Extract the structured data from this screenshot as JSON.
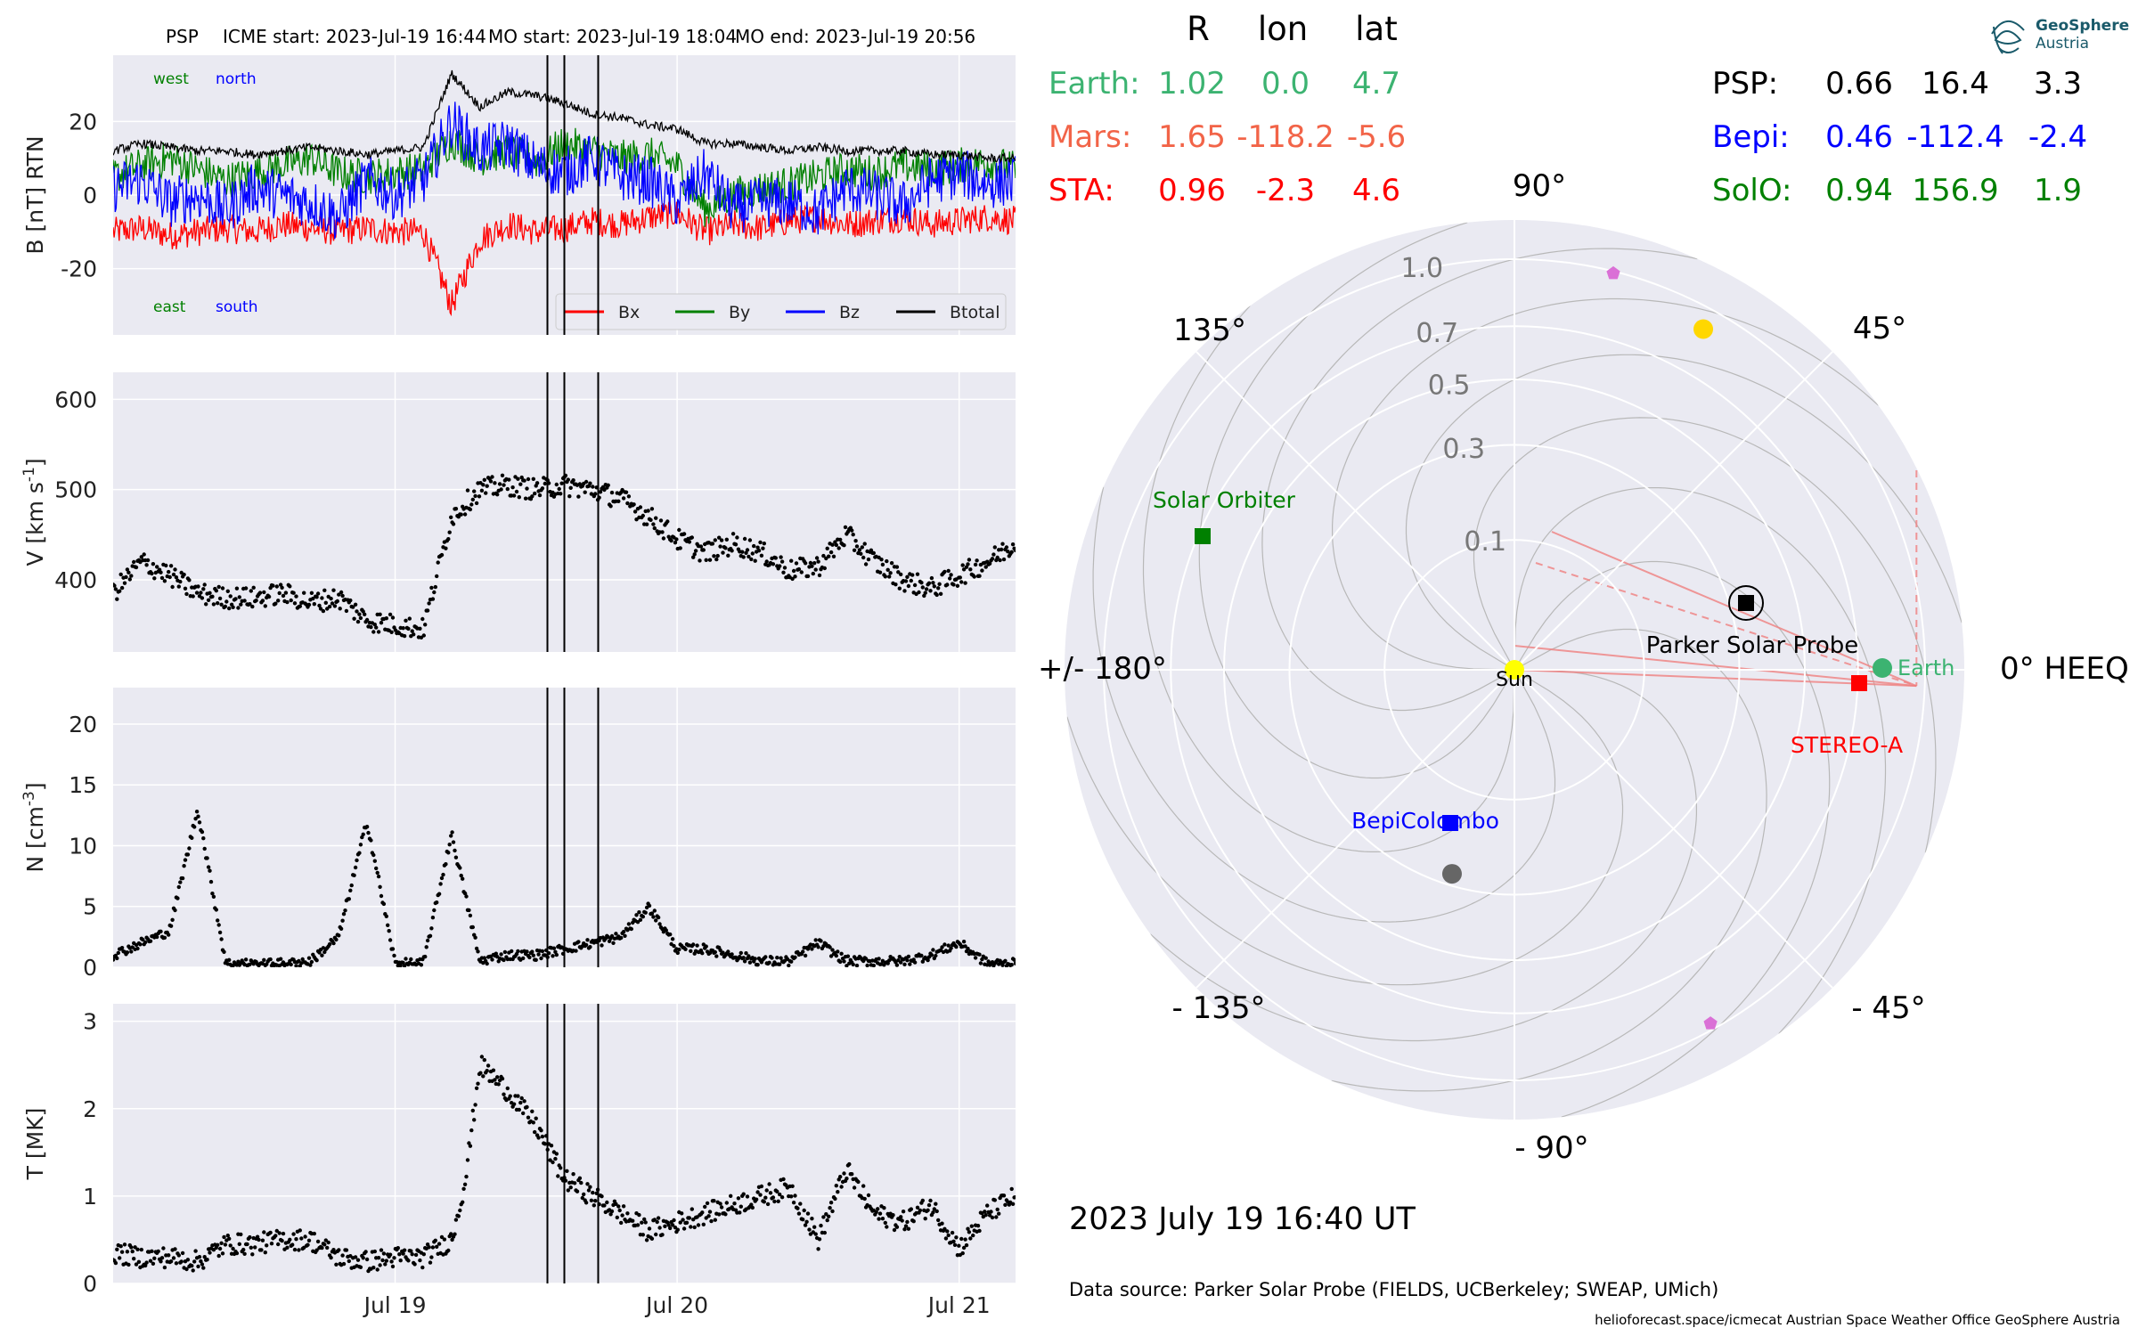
{
  "header": {
    "spacecraft": "PSP",
    "icme_start": "ICME start: 2023-Jul-19 16:44",
    "mo_start": "MO start: 2023-Jul-19 18:04",
    "mo_end": "MO end: 2023-Jul-19 20:56"
  },
  "logo": {
    "line1": "GeoSphere",
    "line2": "Austria"
  },
  "positions_table": {
    "columns": [
      "R",
      "lon",
      "lat"
    ],
    "rows_left": [
      {
        "name": "Earth:",
        "R": "1.02",
        "lon": "0.0",
        "lat": "4.7",
        "color": "#3cb371"
      },
      {
        "name": "Mars:",
        "R": "1.65",
        "lon": "-118.2",
        "lat": "-5.6",
        "color": "#f26448"
      },
      {
        "name": "STA:",
        "R": "0.96",
        "lon": "-2.3",
        "lat": "4.6",
        "color": "#ff0000"
      }
    ],
    "rows_right": [
      {
        "name": "PSP:",
        "R": "0.66",
        "lon": "16.4",
        "lat": "3.3",
        "color": "#000000"
      },
      {
        "name": "Bepi:",
        "R": "0.46",
        "lon": "-112.4",
        "lat": "-2.4",
        "color": "#0000ff"
      },
      {
        "name": "SolO:",
        "R": "0.94",
        "lon": "156.9",
        "lat": "1.9",
        "color": "#008000"
      }
    ]
  },
  "polar_plot": {
    "angle_labels": {
      "a0": "0° HEEQ",
      "a45": "45°",
      "a90": "90°",
      "a135": "135°",
      "a180": "+/- 180°",
      "am135": "- 135°",
      "am90": "- 90°",
      "am45": "- 45°"
    },
    "radial_ticks": [
      0.1,
      0.3,
      0.5,
      0.7,
      1.0
    ],
    "radial_labels": [
      "0.1",
      "0.3",
      "0.5",
      "0.7",
      "1.0"
    ],
    "bodies": [
      {
        "label": "Sun",
        "r": 0.0,
        "lon": 0.0,
        "marker": "circle",
        "color": "#ffff00"
      },
      {
        "label": "Earth",
        "r": 1.02,
        "lon": 0.0,
        "marker": "circle",
        "color": "#3cb371"
      },
      {
        "label": "STEREO-A",
        "r": 0.96,
        "lon": -2.3,
        "marker": "square",
        "color": "#ff0000"
      },
      {
        "label": "Parker Solar Probe",
        "r": 0.66,
        "lon": 16.4,
        "marker": "square",
        "color": "#000000"
      },
      {
        "label": "Solar Orbiter",
        "r": 0.94,
        "lon": 156.9,
        "marker": "square",
        "color": "#008000"
      },
      {
        "label": "BepiColombo",
        "r": 0.46,
        "lon": -112.4,
        "marker": "square",
        "color": "#0000ff"
      }
    ],
    "extra_markers": [
      {
        "r": 0.27,
        "lon": -107,
        "marker": "circle",
        "color": "#666666"
      },
      {
        "r": 0.99,
        "lon": 76,
        "marker": "pentagon",
        "color": "#da70d6"
      },
      {
        "r": 0.97,
        "lon": -61,
        "marker": "pentagon",
        "color": "#da70d6"
      },
      {
        "r": 0.9,
        "lon": 61,
        "marker": "square",
        "color": "#ffd700"
      }
    ],
    "mars": {
      "r": 1.65,
      "lon": -118.2,
      "color": "#f26448"
    },
    "date_text": "2023 July 19  16:40 UT"
  },
  "footer": {
    "data_source": "Data source: Parker Solar Probe (FIELDS, UCBerkeley; SWEAP, UMich)",
    "credits": "helioforecast.space/icmecat   Austrian Space Weather Office   GeoSphere Austria"
  },
  "chart_data": [
    {
      "type": "line",
      "ylabel": "B [nT] RTN",
      "ylim": [
        -38,
        38
      ],
      "yticks": [
        -20,
        0,
        20
      ],
      "series": [
        {
          "name": "Bx",
          "color": "#ff0000"
        },
        {
          "name": "By",
          "color": "#008000"
        },
        {
          "name": "Bz",
          "color": "#0000ff"
        },
        {
          "name": "Btotal",
          "color": "#000000"
        }
      ],
      "annotations": {
        "west": "west",
        "north": "north",
        "east": "east",
        "south": "south"
      },
      "legend_position": "lower-right",
      "x": [
        0,
        0.1,
        0.2,
        0.3,
        0.4,
        0.5,
        0.6,
        0.7,
        0.8,
        0.9,
        1.0,
        1.1,
        1.2,
        1.3,
        1.4,
        1.5,
        1.6,
        1.7,
        1.8,
        1.9,
        2.0,
        2.1,
        2.2,
        2.3,
        2.4,
        2.5,
        2.6,
        2.7,
        2.8,
        2.9,
        3.0,
        3.1,
        3.2
      ],
      "btotal": [
        12,
        14,
        13,
        12,
        12,
        11,
        12,
        13,
        12,
        11,
        12,
        13,
        33,
        24,
        28,
        27,
        25,
        22,
        21,
        19,
        18,
        14,
        14,
        13,
        12,
        13,
        12,
        12,
        12,
        11,
        11,
        10,
        10
      ],
      "bx": [
        -10,
        -9,
        -11,
        -10,
        -9,
        -10,
        -8,
        -9,
        -10,
        -9,
        -10,
        -10,
        -30,
        -12,
        -8,
        -10,
        -9,
        -7,
        -8,
        -6,
        -5,
        -10,
        -8,
        -9,
        -7,
        -6,
        -8,
        -7,
        -6,
        -8,
        -7,
        -6,
        -7
      ],
      "by": [
        5,
        8,
        10,
        7,
        4,
        6,
        8,
        10,
        6,
        5,
        6,
        7,
        15,
        10,
        12,
        9,
        14,
        12,
        10,
        11,
        8,
        -4,
        0,
        2,
        3,
        5,
        7,
        6,
        8,
        7,
        8,
        9,
        7
      ],
      "bz": [
        2,
        4,
        -2,
        0,
        -4,
        2,
        0,
        -2,
        -6,
        4,
        0,
        4,
        20,
        12,
        14,
        8,
        6,
        10,
        5,
        4,
        -2,
        6,
        -4,
        -2,
        -2,
        -5,
        2,
        0,
        -3,
        4,
        6,
        3,
        4
      ]
    },
    {
      "type": "scatter",
      "ylabel": "V [km s$^{-1}$]",
      "ylim": [
        320,
        630
      ],
      "yticks": [
        400,
        500,
        600
      ],
      "x": [
        0,
        0.1,
        0.2,
        0.3,
        0.4,
        0.5,
        0.6,
        0.7,
        0.8,
        0.9,
        1.0,
        1.1,
        1.2,
        1.3,
        1.4,
        1.5,
        1.6,
        1.7,
        1.8,
        1.9,
        2.0,
        2.1,
        2.2,
        2.3,
        2.4,
        2.5,
        2.6,
        2.7,
        2.8,
        2.9,
        3.0,
        3.1,
        3.2
      ],
      "y": [
        385,
        420,
        405,
        385,
        380,
        380,
        385,
        375,
        380,
        355,
        350,
        345,
        470,
        500,
        505,
        500,
        505,
        500,
        490,
        470,
        445,
        430,
        440,
        430,
        410,
        415,
        450,
        420,
        400,
        390,
        405,
        420,
        440
      ]
    },
    {
      "type": "scatter",
      "ylabel": "N [cm$^{-3}$]",
      "ylim": [
        0,
        23
      ],
      "yticks": [
        0,
        5,
        10,
        15,
        20
      ],
      "x": [
        0,
        0.1,
        0.2,
        0.25,
        0.3,
        0.4,
        0.5,
        0.6,
        0.7,
        0.75,
        0.8,
        0.9,
        1.0,
        1.05,
        1.1,
        1.2,
        1.3,
        1.35,
        1.4,
        1.5,
        1.6,
        1.7,
        1.8,
        1.9,
        2.0,
        2.1,
        2.2,
        2.3,
        2.4,
        2.5,
        2.6,
        2.7,
        2.8,
        2.9,
        3.0,
        3.1,
        3.2
      ],
      "y": [
        1,
        2,
        3,
        8,
        13,
        0.3,
        0.3,
        0.3,
        0.5,
        1.5,
        2.5,
        12,
        0.3,
        0.3,
        0.3,
        11,
        0.5,
        0.8,
        1,
        1,
        1.5,
        2,
        2.5,
        5,
        1.5,
        1.5,
        1,
        0.5,
        0.5,
        2,
        0.5,
        0.5,
        0.5,
        1,
        2,
        0.3,
        0.3
      ]
    },
    {
      "type": "scatter",
      "ylabel": "T [MK]",
      "ylim": [
        0,
        3.2
      ],
      "yticks": [
        0,
        1,
        2,
        3
      ],
      "x": [
        0,
        0.1,
        0.2,
        0.3,
        0.4,
        0.5,
        0.6,
        0.7,
        0.8,
        0.9,
        1.0,
        1.1,
        1.2,
        1.25,
        1.3,
        1.4,
        1.5,
        1.6,
        1.7,
        1.8,
        1.9,
        2.0,
        2.1,
        2.2,
        2.3,
        2.4,
        2.5,
        2.6,
        2.7,
        2.8,
        2.9,
        3.0,
        3.1,
        3.2
      ],
      "y": [
        0.35,
        0.3,
        0.3,
        0.25,
        0.45,
        0.45,
        0.5,
        0.5,
        0.3,
        0.25,
        0.3,
        0.3,
        0.5,
        1.2,
        2.5,
        2.2,
        1.8,
        1.2,
        1.0,
        0.8,
        0.6,
        0.7,
        0.8,
        0.9,
        1.0,
        1.1,
        0.5,
        1.3,
        0.8,
        0.7,
        0.9,
        0.4,
        0.8,
        1.0
      ]
    }
  ],
  "x_axis": {
    "tick_labels": [
      "Jul 19",
      "Jul 20",
      "Jul 21"
    ],
    "tick_x": [
      1.0,
      2.0,
      3.0
    ],
    "xlim": [
      0,
      3.2
    ],
    "event_lines_x": [
      1.54,
      1.6,
      1.72
    ]
  }
}
